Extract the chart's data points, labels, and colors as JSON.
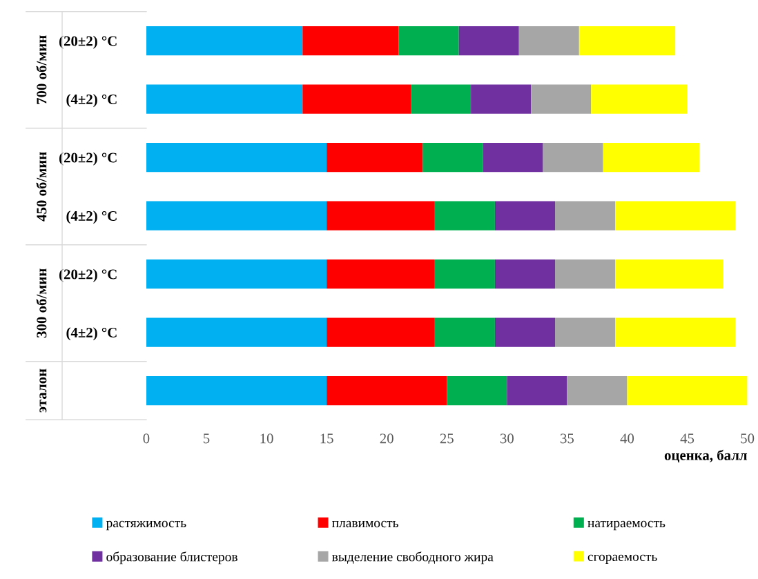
{
  "chart_data": {
    "type": "bar",
    "orientation": "horizontal",
    "stacked": true,
    "categories": [
      "(20±2) °C",
      "(4±2) °C",
      "(20±2) °C",
      "(4±2) °C",
      "(20±2) °C",
      "(4±2) °C",
      null
    ],
    "annotations": [
      "700 об/мин",
      "450 об/мин",
      "300 об/мин",
      "эталон"
    ],
    "xlabel": "оценка, балл",
    "xlim": [
      0,
      50
    ],
    "xticks": [
      0,
      5,
      10,
      15,
      20,
      25,
      30,
      35,
      40,
      45,
      50
    ],
    "grid": false,
    "legend": "bottom",
    "series": [
      {
        "name": "растяжимость",
        "color": "#00b0f0",
        "values": [
          13,
          13,
          15,
          15,
          15,
          15,
          15
        ]
      },
      {
        "name": "плавимость",
        "color": "#ff0000",
        "values": [
          8,
          9,
          8,
          9,
          9,
          9,
          10
        ]
      },
      {
        "name": "натираемость",
        "color": "#00b050",
        "values": [
          5,
          5,
          5,
          5,
          5,
          5,
          5
        ]
      },
      {
        "name": "образование блистеров",
        "color": "#7030a0",
        "values": [
          5,
          5,
          5,
          5,
          5,
          5,
          5
        ]
      },
      {
        "name": "выделение свободного жира",
        "color": "#a6a6a6",
        "values": [
          5,
          5,
          5,
          5,
          5,
          5,
          5
        ]
      },
      {
        "name": "сгораемость",
        "color": "#ffff00",
        "values": [
          8,
          8,
          8,
          10,
          9,
          10,
          10
        ]
      }
    ]
  }
}
